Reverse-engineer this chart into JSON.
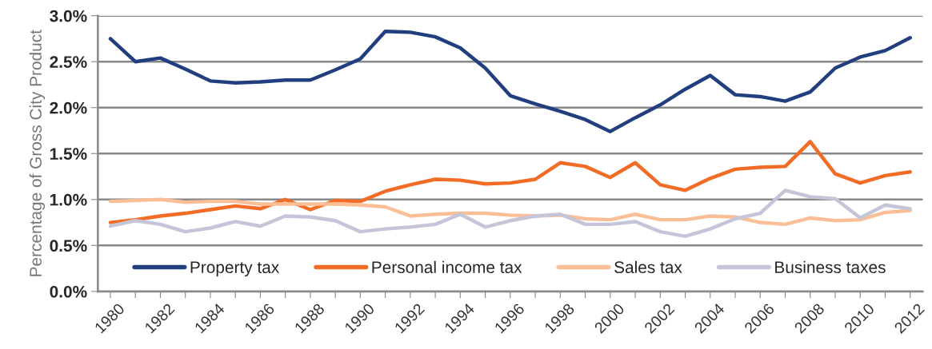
{
  "chart_data": {
    "type": "line",
    "ylabel": "Percentage of Gross City Product",
    "categories": [
      "1980",
      null,
      "1982",
      null,
      "1984",
      null,
      "1986",
      null,
      "1988",
      null,
      "1990",
      null,
      "1992",
      null,
      "1994",
      null,
      "1996",
      null,
      "1998",
      null,
      "2000",
      null,
      "2002",
      null,
      "2004",
      null,
      "2006",
      null,
      "2008",
      null,
      "2010",
      null,
      "2012"
    ],
    "series": [
      {
        "name": "Property tax",
        "color": "#213f7f",
        "values": [
          2.75,
          2.5,
          2.54,
          2.42,
          2.29,
          2.27,
          2.28,
          2.3,
          2.3,
          2.41,
          2.53,
          2.83,
          2.82,
          2.77,
          2.65,
          2.43,
          2.13,
          2.04,
          1.96,
          1.87,
          1.74,
          1.89,
          2.03,
          2.2,
          2.35,
          2.14,
          2.12,
          2.07,
          2.17,
          2.43,
          2.55,
          2.62,
          2.76
        ]
      },
      {
        "name": "Personal income tax",
        "color": "#f26c26",
        "values": [
          0.75,
          0.78,
          0.82,
          0.85,
          0.89,
          0.93,
          0.9,
          1.0,
          0.89,
          0.99,
          0.98,
          1.09,
          1.16,
          1.22,
          1.21,
          1.17,
          1.18,
          1.22,
          1.4,
          1.36,
          1.24,
          1.4,
          1.16,
          1.1,
          1.23,
          1.33,
          1.35,
          1.36,
          1.63,
          1.28,
          1.18,
          1.26,
          1.3
        ]
      },
      {
        "name": "Sales tax",
        "color": "#fbbf98",
        "values": [
          0.98,
          0.99,
          1.0,
          0.97,
          0.98,
          0.98,
          0.95,
          0.95,
          0.95,
          0.95,
          0.94,
          0.92,
          0.82,
          0.84,
          0.85,
          0.85,
          0.83,
          0.82,
          0.83,
          0.79,
          0.78,
          0.84,
          0.78,
          0.78,
          0.82,
          0.81,
          0.75,
          0.73,
          0.8,
          0.77,
          0.78,
          0.86,
          0.88
        ]
      },
      {
        "name": "Business taxes",
        "color": "#c5c5da",
        "values": [
          0.71,
          0.77,
          0.73,
          0.65,
          0.69,
          0.76,
          0.71,
          0.82,
          0.81,
          0.77,
          0.65,
          0.68,
          0.7,
          0.73,
          0.84,
          0.7,
          0.77,
          0.82,
          0.84,
          0.73,
          0.73,
          0.76,
          0.65,
          0.6,
          0.68,
          0.79,
          0.85,
          1.1,
          1.03,
          1.01,
          0.8,
          0.94,
          0.9
        ]
      }
    ],
    "ylim": [
      0,
      3.0
    ],
    "yticks": [
      {
        "value": 0,
        "label": "0.0%"
      },
      {
        "value": 0.5,
        "label": "0.5%"
      },
      {
        "value": 1.0,
        "label": "1.0%"
      },
      {
        "value": 1.5,
        "label": "1.5%"
      },
      {
        "value": 2.0,
        "label": "2.0%"
      },
      {
        "value": 2.5,
        "label": "2.5%"
      },
      {
        "value": 3.0,
        "label": "3.0%"
      }
    ],
    "grid": "y",
    "legend": "bottom",
    "marker": "none",
    "line_style": "solid"
  }
}
